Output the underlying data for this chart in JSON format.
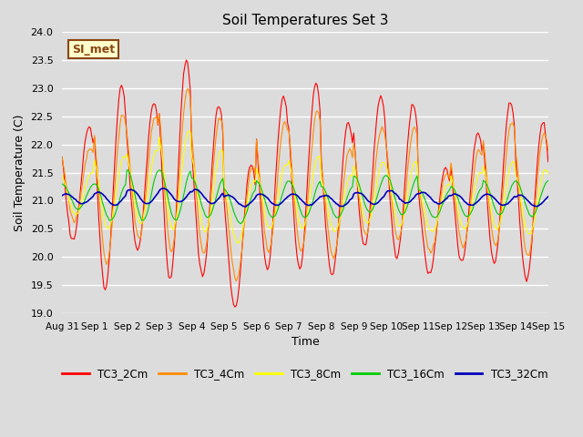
{
  "title": "Soil Temperatures Set 3",
  "xlabel": "Time",
  "ylabel": "Soil Temperature (C)",
  "ylim": [
    19.0,
    24.0
  ],
  "yticks": [
    19.0,
    19.5,
    20.0,
    20.5,
    21.0,
    21.5,
    22.0,
    22.5,
    23.0,
    23.5,
    24.0
  ],
  "xtick_labels": [
    "Aug 31",
    "Sep 1",
    "Sep 2",
    "Sep 3",
    "Sep 4",
    "Sep 5",
    "Sep 6",
    "Sep 7",
    "Sep 8",
    "Sep 9",
    "Sep 10",
    "Sep 11",
    "Sep 12",
    "Sep 13",
    "Sep 14",
    "Sep 15"
  ],
  "series_colors": {
    "TC3_2Cm": "#FF0000",
    "TC3_4Cm": "#FF8C00",
    "TC3_8Cm": "#FFFF00",
    "TC3_16Cm": "#00CC00",
    "TC3_32Cm": "#0000BB"
  },
  "background_color": "#DCDCDC",
  "plot_bg_color": "#DCDCDC",
  "annotation_text": "SI_met",
  "annotation_bg": "#FFFFCC",
  "annotation_border": "#8B4513",
  "grid_color": "#FFFFFF"
}
